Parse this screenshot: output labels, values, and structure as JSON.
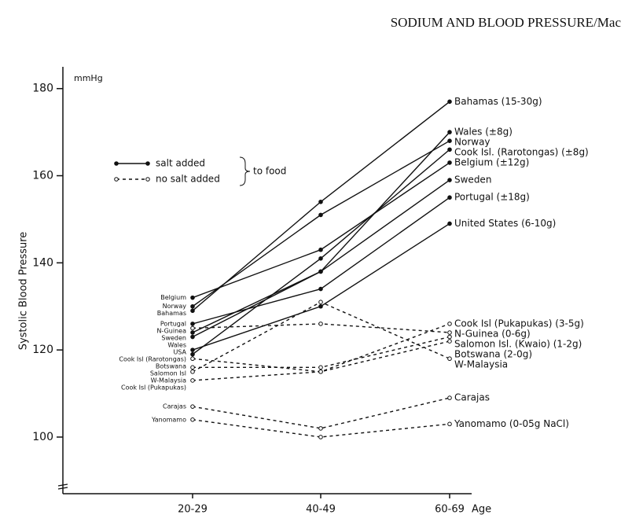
{
  "chart_data": {
    "type": "line",
    "header": "SODIUM AND BLOOD PRESSURE/Mac",
    "y_label": "Systolic Blood Pressure",
    "y_unit": "mmHg",
    "x_label": "Age",
    "categories": [
      "20-29",
      "40-49",
      "60-69"
    ],
    "ylim": [
      87,
      185
    ],
    "yticks": [
      100,
      120,
      140,
      160,
      180
    ],
    "color": "#111111",
    "legend": [
      {
        "label": "salt added",
        "style": "solid"
      },
      {
        "label": "no salt added",
        "style": "dashed"
      }
    ],
    "legend_group": "to food",
    "series": [
      {
        "name": "Bahamas",
        "end_label": "Bahamas (15-30g)",
        "style": "solid",
        "values": [
          129,
          154,
          177
        ]
      },
      {
        "name": "Wales",
        "end_label": "Wales (±8g)",
        "style": "solid",
        "values": [
          123,
          138,
          170
        ]
      },
      {
        "name": "Norway",
        "end_label": "Norway",
        "style": "solid",
        "values": [
          130,
          151,
          168
        ]
      },
      {
        "name": "Cook Isl (Rarotongas)",
        "end_label": "Cook Isl. (Rarotongas) (±8g)",
        "style": "solid",
        "values": [
          119,
          141,
          166
        ]
      },
      {
        "name": "Belgium",
        "end_label": "Belgium (±12g)",
        "style": "solid",
        "values": [
          132,
          143,
          163
        ]
      },
      {
        "name": "Sweden",
        "end_label": "Sweden",
        "style": "solid",
        "values": [
          124,
          138,
          159
        ]
      },
      {
        "name": "Portugal",
        "end_label": "Portugal (±18g)",
        "style": "solid",
        "values": [
          126,
          134,
          155
        ]
      },
      {
        "name": "USA",
        "end_label": "United States (6-10g)",
        "style": "solid",
        "values": [
          120,
          130,
          149
        ]
      },
      {
        "name": "Cook Isl (Pukapukas)",
        "end_label": "Cook Isl (Pukapukas) (3-5g)",
        "style": "dashed",
        "values": [
          113,
          115,
          126
        ]
      },
      {
        "name": "N-Guinea",
        "end_label": "N-Guinea (0-6g)",
        "style": "dashed",
        "values": [
          125,
          126,
          124
        ]
      },
      {
        "name": "Salomon Isl",
        "end_label": "Salomon Isl. (Kwaio) (1-2g)",
        "style": "dashed",
        "values": [
          116,
          116,
          123
        ]
      },
      {
        "name": "Botswana",
        "end_label": "Botswana (2-0g)",
        "style": "dashed",
        "values": [
          118,
          115,
          122
        ]
      },
      {
        "name": "W-Malaysia",
        "end_label": "W-Malaysia",
        "style": "dashed",
        "values": [
          115,
          131,
          118
        ]
      },
      {
        "name": "Carajas",
        "end_label": "Carajas",
        "style": "dashed",
        "values": [
          107,
          102,
          109
        ]
      },
      {
        "name": "Yanomamo",
        "end_label": "Yanomamo (0-05g NaCl)",
        "style": "dashed",
        "values": [
          104,
          100,
          103
        ]
      }
    ]
  }
}
